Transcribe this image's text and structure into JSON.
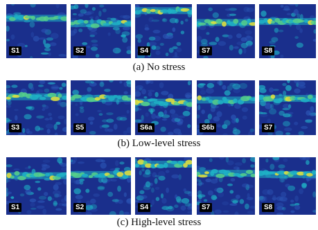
{
  "rows": [
    {
      "caption": "(a) No stress",
      "panels": [
        {
          "label": "S1",
          "band": 0.26,
          "noise": 0.15,
          "seed": 3
        },
        {
          "label": "S2",
          "band": 0.36,
          "noise": 0.45,
          "seed": 7
        },
        {
          "label": "S4",
          "band": 0.12,
          "noise": 0.35,
          "seed": 11
        },
        {
          "label": "S7",
          "band": 0.34,
          "noise": 0.25,
          "seed": 5
        },
        {
          "label": "S8",
          "band": 0.32,
          "noise": 0.2,
          "seed": 9
        }
      ]
    },
    {
      "caption": "(b) Low-level stress",
      "panels": [
        {
          "label": "S3",
          "band": 0.3,
          "noise": 0.55,
          "seed": 13
        },
        {
          "label": "S5",
          "band": 0.33,
          "noise": 0.4,
          "seed": 17
        },
        {
          "label": "S6a",
          "band": 0.4,
          "noise": 0.5,
          "seed": 21
        },
        {
          "label": "S6b",
          "band": 0.36,
          "noise": 0.45,
          "seed": 25
        },
        {
          "label": "S7",
          "band": 0.33,
          "noise": 0.5,
          "seed": 29
        }
      ]
    },
    {
      "caption": "(c) High-level stress",
      "panels": [
        {
          "label": "S1",
          "band": 0.32,
          "noise": 0.6,
          "seed": 31
        },
        {
          "label": "S2",
          "band": 0.3,
          "noise": 0.55,
          "seed": 35
        },
        {
          "label": "S4",
          "band": 0.12,
          "noise": 0.55,
          "seed": 39
        },
        {
          "label": "S7",
          "band": 0.28,
          "noise": 0.6,
          "seed": 43
        },
        {
          "label": "S8",
          "band": 0.3,
          "noise": 0.5,
          "seed": 47
        }
      ]
    }
  ],
  "colors": {
    "background": "#1a2f8c",
    "low": "#2b55b5",
    "mid": "#1fb3c6",
    "high": "#56d08a",
    "peak": "#e6e33a"
  }
}
